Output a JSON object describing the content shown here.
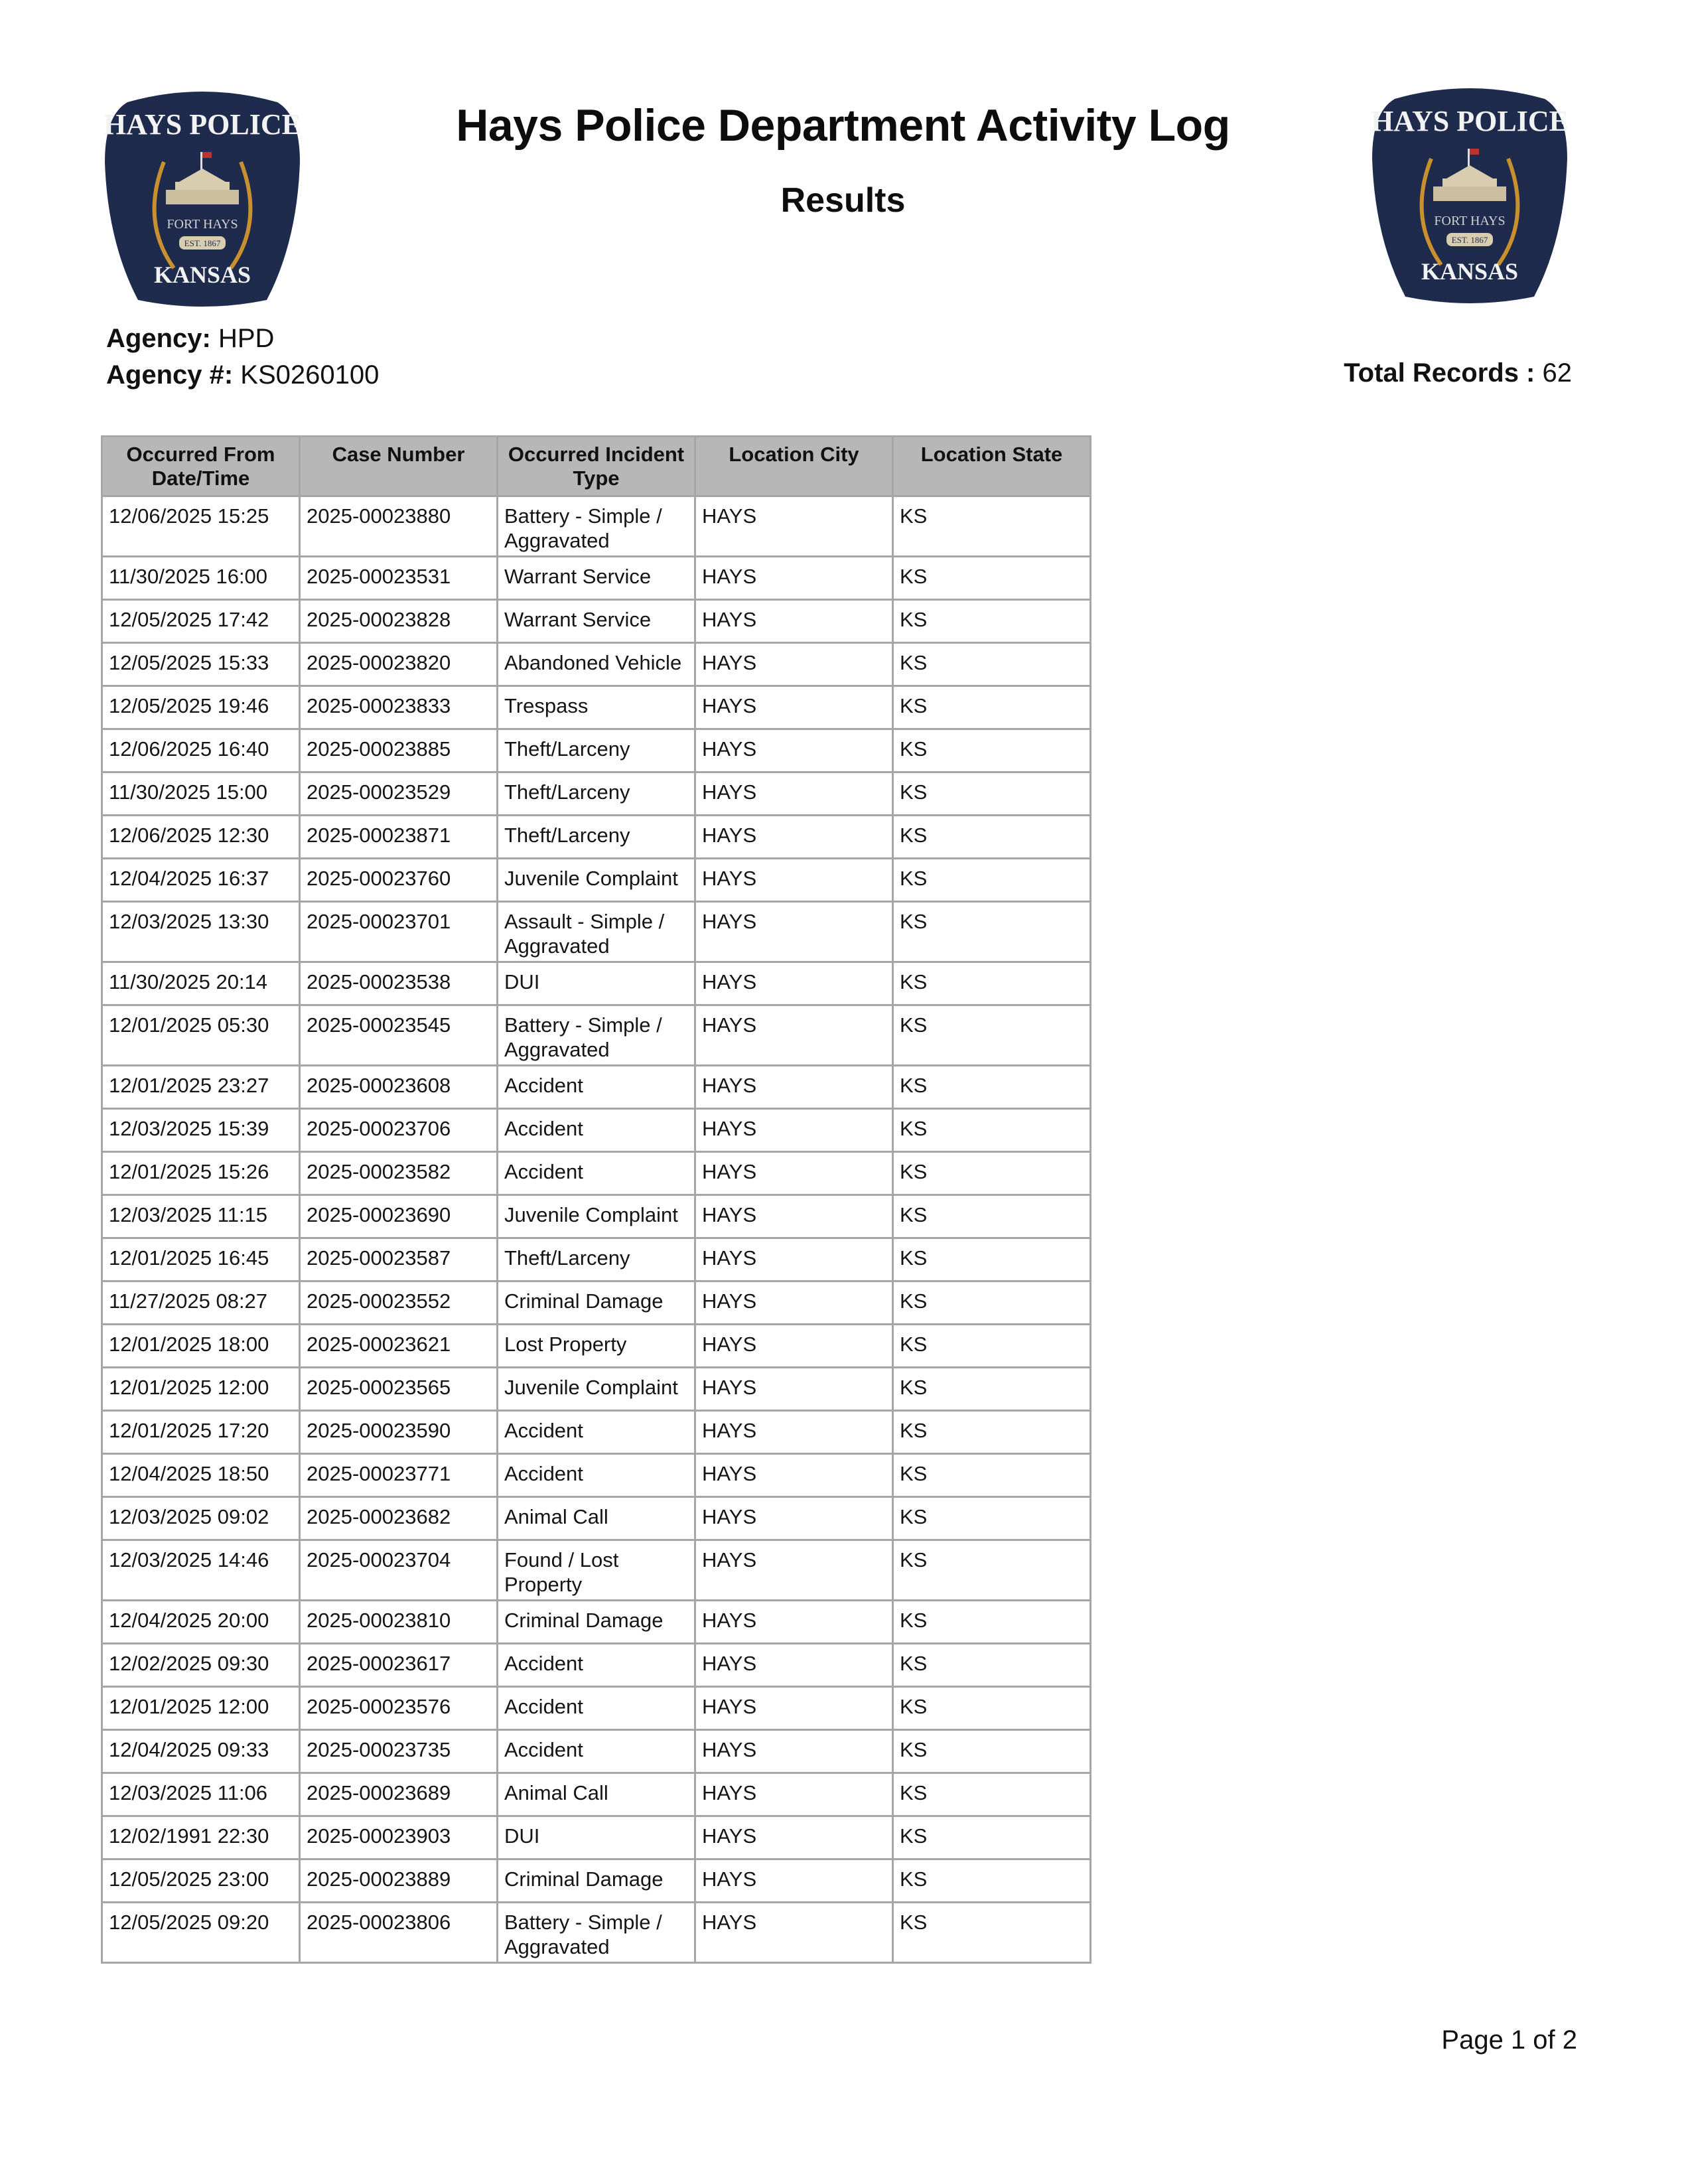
{
  "logo": {
    "top_text": "HAYS POLICE",
    "middle_text": "FORT HAYS",
    "est_text": "EST. 1867",
    "bottom_text": "KANSAS",
    "colors": {
      "shield": "#1f2b4d",
      "wheat": "#c8902e",
      "fort": "#d9cdb0"
    }
  },
  "header": {
    "title": "Hays Police Department Activity Log",
    "subtitle": "Results"
  },
  "agency": {
    "label": "Agency:",
    "value": "HPD"
  },
  "agency_number": {
    "label": "Agency #:",
    "value": "KS0260100"
  },
  "total_records": {
    "label": "Total Records :",
    "value": "62"
  },
  "table": {
    "columns": [
      "Occurred From Date/Time",
      "Case Number",
      "Occurred Incident Type",
      "Location City",
      "Location State"
    ],
    "rows": [
      [
        "12/06/2025 15:25",
        "2025-00023880",
        "Battery - Simple / Aggravated",
        "HAYS",
        "KS"
      ],
      [
        "11/30/2025 16:00",
        "2025-00023531",
        "Warrant Service",
        "HAYS",
        "KS"
      ],
      [
        "12/05/2025 17:42",
        "2025-00023828",
        "Warrant Service",
        "HAYS",
        "KS"
      ],
      [
        "12/05/2025 15:33",
        "2025-00023820",
        "Abandoned Vehicle",
        "HAYS",
        "KS"
      ],
      [
        "12/05/2025 19:46",
        "2025-00023833",
        "Trespass",
        "HAYS",
        "KS"
      ],
      [
        "12/06/2025 16:40",
        "2025-00023885",
        "Theft/Larceny",
        "HAYS",
        "KS"
      ],
      [
        "11/30/2025 15:00",
        "2025-00023529",
        "Theft/Larceny",
        "HAYS",
        "KS"
      ],
      [
        "12/06/2025 12:30",
        "2025-00023871",
        "Theft/Larceny",
        "HAYS",
        "KS"
      ],
      [
        "12/04/2025 16:37",
        "2025-00023760",
        "Juvenile Complaint",
        "HAYS",
        "KS"
      ],
      [
        "12/03/2025 13:30",
        "2025-00023701",
        "Assault - Simple / Aggravated",
        "HAYS",
        "KS"
      ],
      [
        "11/30/2025 20:14",
        "2025-00023538",
        "DUI",
        "HAYS",
        "KS"
      ],
      [
        "12/01/2025 05:30",
        "2025-00023545",
        "Battery - Simple / Aggravated",
        "HAYS",
        "KS"
      ],
      [
        "12/01/2025 23:27",
        "2025-00023608",
        "Accident",
        "HAYS",
        "KS"
      ],
      [
        "12/03/2025 15:39",
        "2025-00023706",
        "Accident",
        "HAYS",
        "KS"
      ],
      [
        "12/01/2025 15:26",
        "2025-00023582",
        "Accident",
        "HAYS",
        "KS"
      ],
      [
        "12/03/2025 11:15",
        "2025-00023690",
        "Juvenile Complaint",
        "HAYS",
        "KS"
      ],
      [
        "12/01/2025 16:45",
        "2025-00023587",
        "Theft/Larceny",
        "HAYS",
        "KS"
      ],
      [
        "11/27/2025 08:27",
        "2025-00023552",
        "Criminal Damage",
        "HAYS",
        "KS"
      ],
      [
        "12/01/2025 18:00",
        "2025-00023621",
        "Lost Property",
        "HAYS",
        "KS"
      ],
      [
        "12/01/2025 12:00",
        "2025-00023565",
        "Juvenile Complaint",
        "HAYS",
        "KS"
      ],
      [
        "12/01/2025 17:20",
        "2025-00023590",
        "Accident",
        "HAYS",
        "KS"
      ],
      [
        "12/04/2025 18:50",
        "2025-00023771",
        "Accident",
        "HAYS",
        "KS"
      ],
      [
        "12/03/2025 09:02",
        "2025-00023682",
        "Animal Call",
        "HAYS",
        "KS"
      ],
      [
        "12/03/2025 14:46",
        "2025-00023704",
        "Found / Lost Property",
        "HAYS",
        "KS"
      ],
      [
        "12/04/2025 20:00",
        "2025-00023810",
        "Criminal Damage",
        "HAYS",
        "KS"
      ],
      [
        "12/02/2025 09:30",
        "2025-00023617",
        "Accident",
        "HAYS",
        "KS"
      ],
      [
        "12/01/2025 12:00",
        "2025-00023576",
        "Accident",
        "HAYS",
        "KS"
      ],
      [
        "12/04/2025 09:33",
        "2025-00023735",
        "Accident",
        "HAYS",
        "KS"
      ],
      [
        "12/03/2025 11:06",
        "2025-00023689",
        "Animal Call",
        "HAYS",
        "KS"
      ],
      [
        "12/02/1991 22:30",
        "2025-00023903",
        "DUI",
        "HAYS",
        "KS"
      ],
      [
        "12/05/2025 23:00",
        "2025-00023889",
        "Criminal Damage",
        "HAYS",
        "KS"
      ],
      [
        "12/05/2025 09:20",
        "2025-00023806",
        "Battery - Simple / Aggravated",
        "HAYS",
        "KS"
      ]
    ]
  },
  "footer": {
    "page": "Page 1 of 2"
  }
}
